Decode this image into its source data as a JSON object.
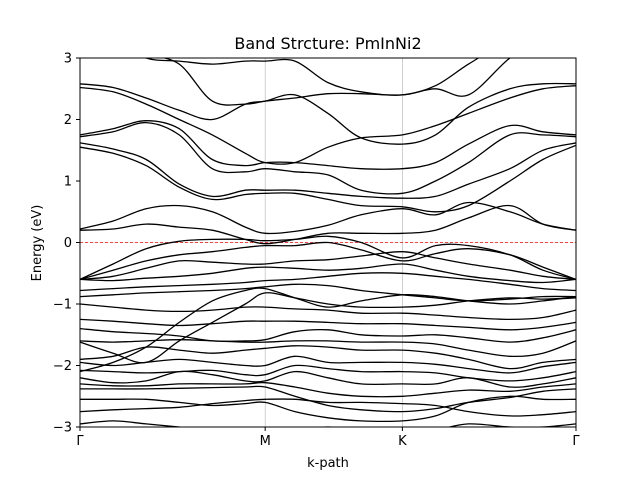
{
  "chart_data": {
    "type": "line",
    "title": "Band Strcture: PmInNi2",
    "xlabel": "k-path",
    "ylabel": "Energy (eV)",
    "ylim": [
      -3,
      3
    ],
    "xlim": [
      0,
      3
    ],
    "yticks": [
      -3,
      -2,
      -1,
      0,
      1,
      2,
      3
    ],
    "ytick_labels": [
      "−3",
      "−2",
      "−1",
      "0",
      "1",
      "2",
      "3"
    ],
    "kpoints": [
      {
        "label": "Γ",
        "x": 0
      },
      {
        "label": "M",
        "x": 1.12
      },
      {
        "label": "K",
        "x": 1.95
      },
      {
        "label": "Γ",
        "x": 3
      }
    ],
    "fermi_level": 0,
    "grid": "vertical lines at high-symmetry points",
    "colors": {
      "bands": "#000000",
      "fermi": "#ff0000",
      "kline": "#b0b0b0"
    },
    "series": [
      {
        "x": [
          0,
          0.2,
          0.4,
          0.6,
          0.8,
          1.0,
          1.12,
          1.3,
          1.5,
          1.7,
          1.95,
          2.15,
          2.35,
          2.6,
          2.8,
          3.0
        ],
        "values": [
          -2.95,
          -2.9,
          -2.95,
          -3.0,
          -3.05,
          -3.1,
          -3.1,
          -3.05,
          -3.0,
          -3.05,
          -3.1,
          -3.05,
          -2.95,
          -3.0,
          -3.0,
          -2.95
        ]
      },
      {
        "x": [
          0,
          0.2,
          0.4,
          0.6,
          0.8,
          1.0,
          1.12,
          1.3,
          1.5,
          1.7,
          1.95,
          2.15,
          2.35,
          2.6,
          2.8,
          3.0
        ],
        "values": [
          -2.75,
          -2.72,
          -2.7,
          -2.68,
          -2.62,
          -2.57,
          -2.55,
          -2.55,
          -2.6,
          -2.6,
          -2.62,
          -2.65,
          -2.75,
          -2.82,
          -2.8,
          -2.75
        ]
      },
      {
        "x": [
          0,
          0.2,
          0.4,
          0.6,
          0.8,
          1.0,
          1.12,
          1.3,
          1.5,
          1.7,
          1.95,
          2.15,
          2.35,
          2.6,
          2.8,
          3.0
        ],
        "values": [
          -2.55,
          -2.55,
          -2.55,
          -2.6,
          -2.65,
          -2.62,
          -2.6,
          -2.75,
          -2.85,
          -2.9,
          -2.9,
          -2.82,
          -2.6,
          -2.5,
          -2.55,
          -2.55
        ]
      },
      {
        "x": [
          0,
          0.2,
          0.4,
          0.6,
          0.8,
          1.0,
          1.12,
          1.3,
          1.5,
          1.7,
          1.95,
          2.15,
          2.35,
          2.6,
          2.8,
          3.0
        ],
        "values": [
          -2.38,
          -2.38,
          -2.38,
          -2.37,
          -2.36,
          -2.35,
          -2.35,
          -2.5,
          -2.65,
          -2.72,
          -2.75,
          -2.7,
          -2.6,
          -2.52,
          -2.42,
          -2.38
        ]
      },
      {
        "x": [
          0,
          0.2,
          0.4,
          0.6,
          0.8,
          1.0,
          1.12,
          1.3,
          1.5,
          1.7,
          1.95,
          2.15,
          2.35,
          2.6,
          2.8,
          3.0
        ],
        "values": [
          -2.3,
          -2.33,
          -2.33,
          -2.3,
          -2.3,
          -2.3,
          -2.28,
          -2.35,
          -2.45,
          -2.5,
          -2.5,
          -2.45,
          -2.4,
          -2.42,
          -2.35,
          -2.3
        ]
      },
      {
        "x": [
          0,
          0.2,
          0.4,
          0.6,
          0.8,
          1.0,
          1.12,
          1.3,
          1.5,
          1.7,
          1.95,
          2.15,
          2.35,
          2.6,
          2.8,
          3.0
        ],
        "values": [
          -2.2,
          -2.28,
          -2.25,
          -2.1,
          -2.15,
          -2.25,
          -2.25,
          -2.1,
          -2.2,
          -2.3,
          -2.3,
          -2.3,
          -2.2,
          -2.35,
          -2.3,
          -2.2
        ]
      },
      {
        "x": [
          0,
          0.2,
          0.4,
          0.6,
          0.8,
          1.0,
          1.12,
          1.3,
          1.5,
          1.7,
          1.95,
          2.15,
          2.35,
          2.6,
          2.8,
          3.0
        ],
        "values": [
          -2.08,
          -2.1,
          -2.12,
          -2.1,
          -2.08,
          -2.15,
          -2.15,
          -2.0,
          -2.05,
          -2.1,
          -2.1,
          -2.12,
          -2.2,
          -2.25,
          -2.2,
          -2.1
        ]
      },
      {
        "x": [
          0,
          0.2,
          0.4,
          0.6,
          0.8,
          1.0,
          1.12,
          1.3,
          1.5,
          1.7,
          1.95,
          2.15,
          2.35,
          2.6,
          2.8,
          3.0
        ],
        "values": [
          -1.95,
          -2.0,
          -1.95,
          -1.9,
          -1.95,
          -2.0,
          -2.0,
          -1.85,
          -1.95,
          -1.95,
          -1.95,
          -1.98,
          -2.05,
          -2.12,
          -2.02,
          -1.95
        ]
      },
      {
        "x": [
          0,
          0.2,
          0.4,
          0.6,
          0.8,
          1.0,
          1.12,
          1.3,
          1.5,
          1.7,
          1.95,
          2.15,
          2.35,
          2.6,
          2.8,
          3.0
        ],
        "values": [
          -1.9,
          -1.85,
          -1.7,
          -1.75,
          -1.8,
          -1.75,
          -1.72,
          -1.68,
          -1.7,
          -1.75,
          -1.75,
          -1.8,
          -1.9,
          -2.05,
          -1.95,
          -1.9
        ]
      },
      {
        "x": [
          0,
          0.2,
          0.4,
          0.6,
          0.8,
          1.0,
          1.12,
          1.3,
          1.5,
          1.7,
          1.95,
          2.15,
          2.35,
          2.6,
          2.8,
          3.0
        ],
        "values": [
          -1.6,
          -1.62,
          -1.6,
          -1.58,
          -1.6,
          -1.62,
          -1.62,
          -1.6,
          -1.6,
          -1.62,
          -1.62,
          -1.65,
          -1.75,
          -1.85,
          -1.8,
          -1.6
        ]
      },
      {
        "x": [
          0,
          0.2,
          0.4,
          0.6,
          0.8,
          1.0,
          1.12,
          1.3,
          1.5,
          1.7,
          1.95,
          2.15,
          2.35,
          2.6,
          2.8,
          3.0
        ],
        "values": [
          -1.4,
          -1.45,
          -1.48,
          -1.52,
          -1.6,
          -1.6,
          -1.58,
          -1.45,
          -1.42,
          -1.5,
          -1.52,
          -1.5,
          -1.55,
          -1.62,
          -1.55,
          -1.42
        ]
      },
      {
        "x": [
          0,
          0.2,
          0.4,
          0.6,
          0.8,
          1.0,
          1.12,
          1.3,
          1.5,
          1.7,
          1.95,
          2.15,
          2.35,
          2.6,
          2.8,
          3.0
        ],
        "values": [
          -1.25,
          -1.28,
          -1.32,
          -1.35,
          -1.32,
          -1.28,
          -1.28,
          -1.28,
          -1.3,
          -1.32,
          -1.32,
          -1.35,
          -1.38,
          -1.42,
          -1.38,
          -1.3
        ]
      },
      {
        "x": [
          0,
          0.2,
          0.4,
          0.6,
          0.8,
          1.0,
          1.12,
          1.3,
          1.5,
          1.7,
          1.95,
          2.15,
          2.35,
          2.6,
          2.8,
          3.0
        ],
        "values": [
          -1.0,
          -1.05,
          -1.1,
          -1.12,
          -1.1,
          -1.05,
          -1.05,
          -1.08,
          -1.1,
          -1.15,
          -1.15,
          -1.18,
          -1.22,
          -1.25,
          -1.22,
          -1.1
        ]
      },
      {
        "x": [
          0,
          0.2,
          0.4,
          0.6,
          0.8,
          1.0,
          1.12,
          1.3,
          1.5,
          1.7,
          1.95,
          2.15,
          2.35,
          2.6,
          2.8,
          3.0
        ],
        "values": [
          -1.62,
          -1.8,
          -1.95,
          -1.6,
          -1.3,
          -1.0,
          -0.82,
          -0.9,
          -1.0,
          -1.05,
          -1.05,
          -1.02,
          -0.95,
          -0.9,
          -0.92,
          -0.9
        ]
      },
      {
        "x": [
          0,
          0.2,
          0.4,
          0.6,
          0.8,
          1.0,
          1.12,
          1.3,
          1.5,
          1.7,
          1.95,
          2.15,
          2.35,
          2.6,
          2.8,
          3.0
        ],
        "values": [
          -2.1,
          -1.95,
          -1.7,
          -1.3,
          -0.95,
          -0.78,
          -0.75,
          -0.9,
          -1.05,
          -0.95,
          -0.85,
          -0.88,
          -0.95,
          -1.0,
          -0.95,
          -0.88
        ]
      },
      {
        "x": [
          0,
          0.2,
          0.4,
          0.6,
          0.8,
          1.0,
          1.12,
          1.3,
          1.5,
          1.7,
          1.95,
          2.15,
          2.35,
          2.6,
          2.8,
          3.0
        ],
        "values": [
          -0.88,
          -0.85,
          -0.82,
          -0.8,
          -0.78,
          -0.75,
          -0.72,
          -0.68,
          -0.7,
          -0.78,
          -0.85,
          -0.9,
          -0.95,
          -0.92,
          -0.88,
          -0.88
        ]
      },
      {
        "x": [
          0,
          0.2,
          0.4,
          0.6,
          0.8,
          1.0,
          1.12,
          1.3,
          1.5,
          1.7,
          1.95,
          2.15,
          2.35,
          2.6,
          2.8,
          3.0
        ],
        "values": [
          -0.78,
          -0.75,
          -0.72,
          -0.7,
          -0.68,
          -0.65,
          -0.62,
          -0.6,
          -0.55,
          -0.5,
          -0.5,
          -0.55,
          -0.6,
          -0.68,
          -0.75,
          -0.78
        ]
      },
      {
        "x": [
          0,
          0.2,
          0.4,
          0.6,
          0.8,
          1.0,
          1.12,
          1.3,
          1.5,
          1.7,
          1.95,
          2.15,
          2.35,
          2.6,
          2.8,
          3.0
        ],
        "values": [
          -0.6,
          -0.62,
          -0.58,
          -0.55,
          -0.5,
          -0.42,
          -0.4,
          -0.42,
          -0.45,
          -0.42,
          -0.35,
          -0.45,
          -0.55,
          -0.62,
          -0.65,
          -0.6
        ]
      },
      {
        "x": [
          0,
          0.2,
          0.4,
          0.6,
          0.8,
          1.0,
          1.12,
          1.3,
          1.5,
          1.7,
          1.95,
          2.15,
          2.35,
          2.6,
          2.8,
          3.0
        ],
        "values": [
          -0.6,
          -0.55,
          -0.42,
          -0.3,
          -0.32,
          -0.35,
          -0.35,
          -0.3,
          -0.28,
          -0.22,
          -0.15,
          -0.25,
          -0.35,
          -0.45,
          -0.55,
          -0.6
        ]
      },
      {
        "x": [
          0,
          0.2,
          0.4,
          0.6,
          0.8,
          1.0,
          1.12,
          1.3,
          1.5,
          1.7,
          1.95,
          2.15,
          2.35,
          2.6,
          2.8,
          3.0
        ],
        "values": [
          -0.6,
          -0.45,
          -0.3,
          -0.2,
          -0.15,
          -0.08,
          -0.05,
          -0.05,
          0.0,
          -0.12,
          -0.3,
          -0.18,
          -0.1,
          -0.2,
          -0.4,
          -0.6
        ]
      },
      {
        "x": [
          0,
          0.2,
          0.4,
          0.6,
          0.8,
          1.0,
          1.12,
          1.3,
          1.5,
          1.7,
          1.95,
          2.15,
          2.35,
          2.6,
          2.8,
          3.0
        ],
        "values": [
          -0.6,
          -0.35,
          -0.1,
          0.02,
          0.05,
          0.05,
          0.03,
          0.05,
          0.1,
          0.0,
          -0.25,
          -0.05,
          -0.05,
          -0.2,
          -0.45,
          -0.6
        ]
      },
      {
        "x": [
          0,
          0.2,
          0.4,
          0.6,
          0.8,
          1.0,
          1.12,
          1.3,
          1.5,
          1.7,
          1.95,
          2.15,
          2.35,
          2.6,
          2.8,
          3.0
        ],
        "values": [
          0.2,
          0.22,
          0.3,
          0.25,
          0.2,
          0.05,
          -0.02,
          0.05,
          0.15,
          0.15,
          0.15,
          0.2,
          0.4,
          0.6,
          0.3,
          0.2
        ]
      },
      {
        "x": [
          0,
          0.2,
          0.4,
          0.6,
          0.8,
          1.0,
          1.12,
          1.3,
          1.5,
          1.7,
          1.95,
          2.15,
          2.35,
          2.6,
          2.8,
          3.0
        ],
        "values": [
          0.22,
          0.35,
          0.55,
          0.6,
          0.5,
          0.25,
          0.15,
          0.18,
          0.28,
          0.45,
          0.55,
          0.45,
          0.65,
          0.5,
          0.3,
          0.2
        ]
      },
      {
        "x": [
          0,
          0.2,
          0.4,
          0.6,
          0.8,
          1.0,
          1.12,
          1.3,
          1.5,
          1.7,
          1.95,
          2.15,
          2.35,
          2.6,
          2.8,
          3.0
        ],
        "values": [
          1.55,
          1.45,
          1.25,
          0.9,
          0.7,
          0.78,
          0.8,
          0.8,
          0.7,
          0.6,
          0.58,
          0.5,
          0.6,
          1.0,
          1.35,
          1.58
        ]
      },
      {
        "x": [
          0,
          0.2,
          0.4,
          0.6,
          0.8,
          1.0,
          1.12,
          1.3,
          1.5,
          1.7,
          1.95,
          2.15,
          2.35,
          2.6,
          2.8,
          3.0
        ],
        "values": [
          1.62,
          1.52,
          1.35,
          0.95,
          0.75,
          0.85,
          0.85,
          0.85,
          0.8,
          0.75,
          0.72,
          0.75,
          0.95,
          1.2,
          1.5,
          1.62
        ]
      },
      {
        "x": [
          0,
          0.2,
          0.4,
          0.6,
          0.8,
          1.0,
          1.12,
          1.3,
          1.5,
          1.7,
          1.95,
          2.15,
          2.35,
          2.6,
          2.8,
          3.0
        ],
        "values": [
          1.72,
          1.8,
          1.95,
          1.75,
          1.2,
          1.15,
          1.2,
          1.15,
          1.1,
          0.85,
          0.8,
          1.0,
          1.3,
          1.75,
          1.75,
          1.72
        ]
      },
      {
        "x": [
          0,
          0.2,
          0.4,
          0.6,
          0.8,
          1.0,
          1.12,
          1.3,
          1.5,
          1.7,
          1.95,
          2.15,
          2.35,
          2.6,
          2.8,
          3.0
        ],
        "values": [
          1.75,
          1.85,
          1.98,
          1.85,
          1.35,
          1.25,
          1.3,
          1.3,
          1.25,
          1.2,
          1.2,
          1.3,
          1.6,
          1.9,
          1.8,
          1.75
        ]
      },
      {
        "x": [
          0,
          0.2,
          0.4,
          0.6,
          0.8,
          1.0,
          1.12,
          1.3,
          1.5,
          1.7,
          1.95,
          2.15,
          2.35,
          2.6,
          2.8,
          3.0
        ],
        "values": [
          2.52,
          2.45,
          2.25,
          2.0,
          1.75,
          1.45,
          1.3,
          1.3,
          1.55,
          1.7,
          1.75,
          1.9,
          2.1,
          2.35,
          2.5,
          2.55
        ]
      },
      {
        "x": [
          0,
          0.2,
          0.4,
          0.6,
          0.8,
          1.0,
          1.12,
          1.3,
          1.5,
          1.7,
          1.95,
          2.15,
          2.35,
          2.6,
          2.8,
          3.0
        ],
        "values": [
          2.58,
          2.52,
          2.35,
          2.15,
          2.0,
          2.25,
          2.3,
          2.4,
          2.1,
          1.7,
          1.6,
          1.75,
          2.2,
          2.5,
          2.58,
          2.58
        ]
      },
      {
        "x": [
          0,
          0.2,
          0.4,
          0.6,
          0.8,
          1.0,
          1.12,
          1.3,
          1.5,
          1.7,
          1.95,
          2.15,
          2.35,
          2.6,
          2.8,
          3.0
        ],
        "values": [
          3.2,
          3.15,
          3.05,
          2.9,
          2.3,
          2.25,
          2.3,
          2.35,
          2.42,
          2.42,
          2.4,
          2.5,
          2.4,
          3.0,
          3.3,
          3.4
        ]
      },
      {
        "x": [
          0,
          0.2,
          0.4,
          0.6,
          0.8,
          1.0,
          1.12,
          1.3,
          1.5,
          1.7,
          1.95,
          2.15,
          2.35,
          2.6,
          2.8,
          3.0
        ],
        "values": [
          3.4,
          3.3,
          3.0,
          2.95,
          2.9,
          2.95,
          2.95,
          2.95,
          2.6,
          2.45,
          2.4,
          2.55,
          2.9,
          3.3,
          3.5,
          3.5
        ]
      }
    ]
  }
}
